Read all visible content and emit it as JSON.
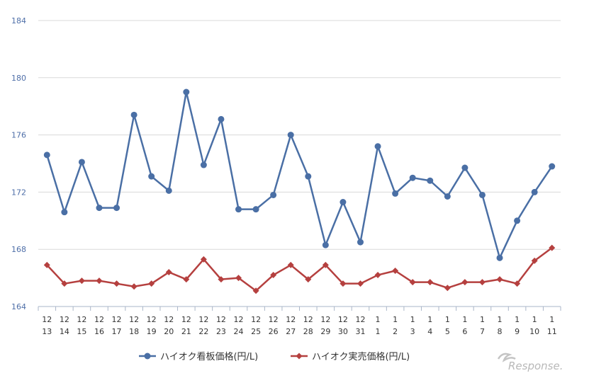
{
  "chart_data": {
    "type": "line",
    "title": "",
    "xlabel": "",
    "ylabel": "",
    "ylim": [
      164,
      184
    ],
    "yticks": [
      "164",
      "168",
      "172",
      "176",
      "180",
      "184"
    ],
    "grid": "horizontal",
    "legend_position": "bottom",
    "categories": [
      [
        "12",
        "13"
      ],
      [
        "12",
        "14"
      ],
      [
        "12",
        "15"
      ],
      [
        "12",
        "16"
      ],
      [
        "12",
        "17"
      ],
      [
        "12",
        "18"
      ],
      [
        "12",
        "19"
      ],
      [
        "12",
        "20"
      ],
      [
        "12",
        "21"
      ],
      [
        "12",
        "22"
      ],
      [
        "12",
        "23"
      ],
      [
        "12",
        "24"
      ],
      [
        "12",
        "25"
      ],
      [
        "12",
        "26"
      ],
      [
        "12",
        "27"
      ],
      [
        "12",
        "28"
      ],
      [
        "12",
        "29"
      ],
      [
        "12",
        "30"
      ],
      [
        "12",
        "31"
      ],
      [
        "1",
        "1"
      ],
      [
        "1",
        "2"
      ],
      [
        "1",
        "3"
      ],
      [
        "1",
        "4"
      ],
      [
        "1",
        "5"
      ],
      [
        "1",
        "6"
      ],
      [
        "1",
        "7"
      ],
      [
        "1",
        "8"
      ],
      [
        "1",
        "9"
      ],
      [
        "1",
        "10"
      ],
      [
        "1",
        "11"
      ]
    ],
    "series": [
      {
        "name": "ハイオク看板価格(円/L)",
        "color": "#4a6fa5",
        "marker": "circle",
        "values": [
          174.6,
          170.6,
          174.1,
          170.9,
          170.9,
          177.4,
          173.1,
          172.1,
          179.0,
          173.9,
          177.1,
          170.8,
          170.8,
          171.8,
          176.0,
          173.1,
          168.3,
          171.3,
          168.5,
          175.2,
          171.9,
          173.0,
          172.8,
          171.7,
          173.7,
          171.8,
          167.4,
          170.0,
          172.0,
          173.8
        ]
      },
      {
        "name": "ハイオク実売価格(円/L)",
        "color": "#b5403f",
        "marker": "diamond",
        "values": [
          166.9,
          165.6,
          165.8,
          165.8,
          165.6,
          165.4,
          165.6,
          166.4,
          165.9,
          167.3,
          165.9,
          166.0,
          165.1,
          166.2,
          166.9,
          165.9,
          166.9,
          165.6,
          165.6,
          166.2,
          166.5,
          165.7,
          165.7,
          165.3,
          165.7,
          165.7,
          165.9,
          165.6,
          167.2,
          168.1
        ]
      }
    ]
  },
  "watermark": "Response."
}
